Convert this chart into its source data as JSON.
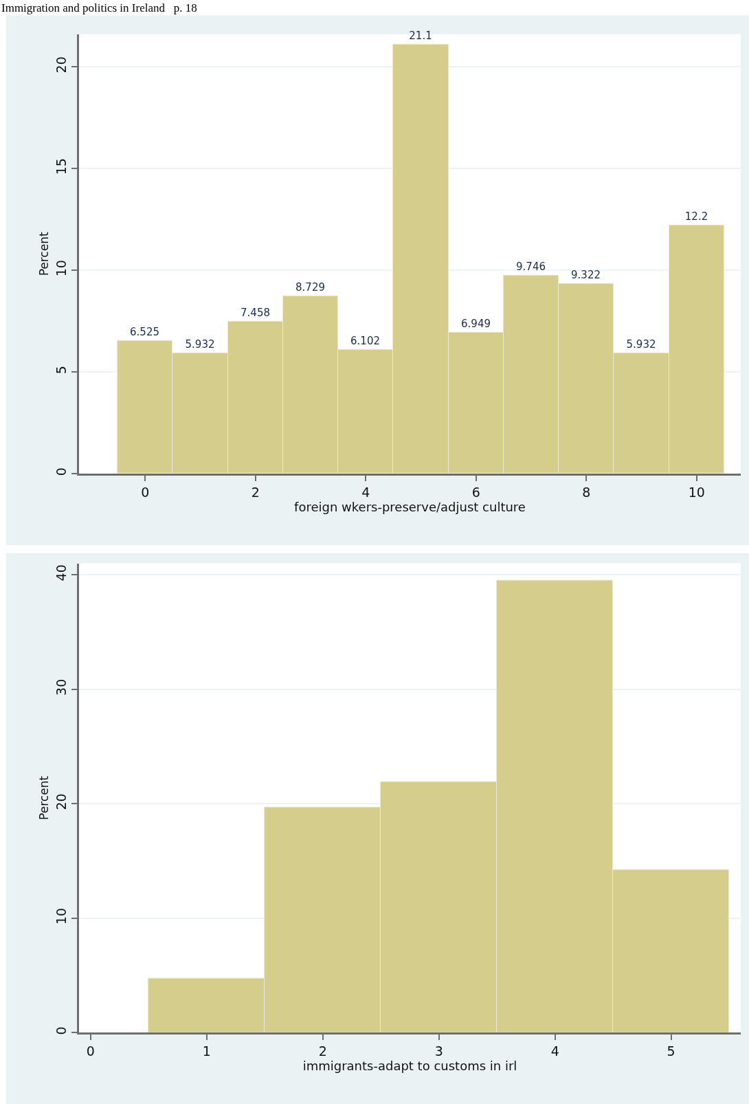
{
  "chart_data": [
    {
      "type": "histogram",
      "annotations": [
        "Immigration and politics in Ireland   p. 18"
      ],
      "xlabel": "foreign wkers-preserve/adjust culture",
      "ylabel": "Percent",
      "bins": [
        -0.5,
        0.5,
        1.5,
        2.5,
        3.5,
        4.5,
        5.5,
        6.5,
        7.5,
        8.5,
        9.5,
        10.5
      ],
      "values": [
        6.525,
        5.932,
        7.458,
        8.729,
        6.102,
        21.1,
        6.949,
        9.746,
        9.322,
        5.932,
        12.2
      ],
      "color": "#d5cd8c",
      "data_labels": true,
      "xlim": [
        -1.2,
        10.8
      ],
      "xticks": [
        0,
        2,
        4,
        6,
        8,
        10
      ],
      "ylim": [
        0,
        21.6
      ],
      "yticks": [
        0,
        5,
        10,
        15,
        20
      ],
      "grid": "y"
    },
    {
      "type": "histogram",
      "xlabel": "immigrants-adapt to customs in irl",
      "ylabel": "Percent",
      "bins": [
        0.5,
        1.5,
        2.5,
        3.5,
        4.5,
        5.5
      ],
      "values": [
        4.7,
        19.7,
        21.9,
        39.5,
        14.2
      ],
      "color": "#d5cd8c",
      "xlim": [
        -0.1,
        5.6
      ],
      "xticks": [
        0,
        1,
        2,
        3,
        4,
        5
      ],
      "ylim": [
        0,
        41
      ],
      "yticks": [
        0,
        10,
        20,
        30,
        40
      ],
      "grid": "y"
    }
  ]
}
